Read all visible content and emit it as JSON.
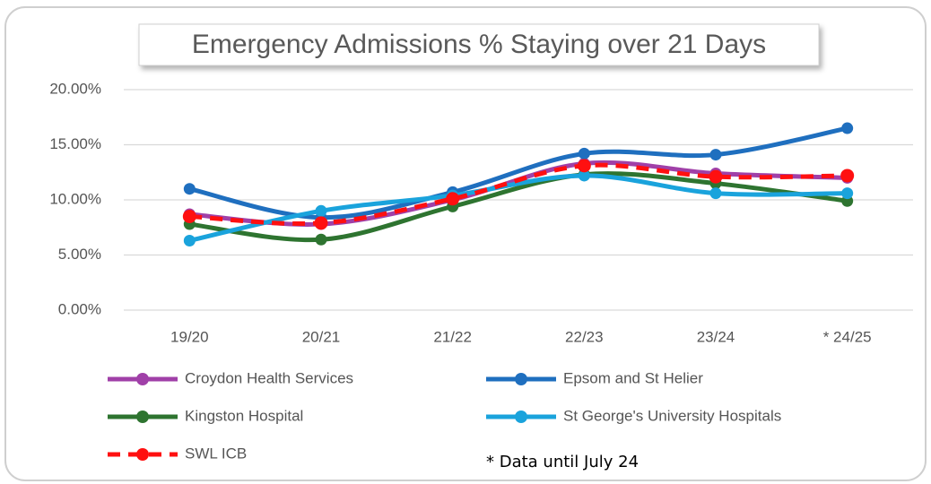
{
  "chart_data": {
    "type": "line",
    "title": "Emergency Admissions % Staying over 21 Days",
    "annotation": "* Data until July 24",
    "categories": [
      "19/20",
      "20/21",
      "21/22",
      "22/23",
      "23/24",
      "* 24/25"
    ],
    "series": [
      {
        "name": "Croydon Health Services",
        "color": "#a040a8",
        "values": [
          8.7,
          7.8,
          10.0,
          13.3,
          12.4,
          12.0
        ]
      },
      {
        "name": "Epsom and St Helier",
        "color": "#1f6fbf",
        "values": [
          11.0,
          8.4,
          10.7,
          14.2,
          14.1,
          16.5
        ]
      },
      {
        "name": "Kingston Hospital",
        "color": "#2e7430",
        "values": [
          7.8,
          6.4,
          9.4,
          12.3,
          11.5,
          9.9
        ]
      },
      {
        "name": "St George's University Hospitals",
        "color": "#1aa3dc",
        "values": [
          6.3,
          9.0,
          10.4,
          12.2,
          10.6,
          10.6
        ]
      },
      {
        "name": "SWL ICB",
        "color": "#ff1010",
        "dashed": true,
        "values": [
          8.5,
          7.9,
          10.1,
          13.1,
          12.1,
          12.2
        ]
      }
    ],
    "ylim": [
      0,
      20
    ],
    "yticks": [
      {
        "value": 0,
        "label": "0.00%"
      },
      {
        "value": 5,
        "label": "5.00%"
      },
      {
        "value": 10,
        "label": "10.00%"
      },
      {
        "value": 15,
        "label": "15.00%"
      },
      {
        "value": 20,
        "label": "20.00%"
      }
    ],
    "grid": true,
    "smooth": true,
    "legend": "bottom"
  }
}
